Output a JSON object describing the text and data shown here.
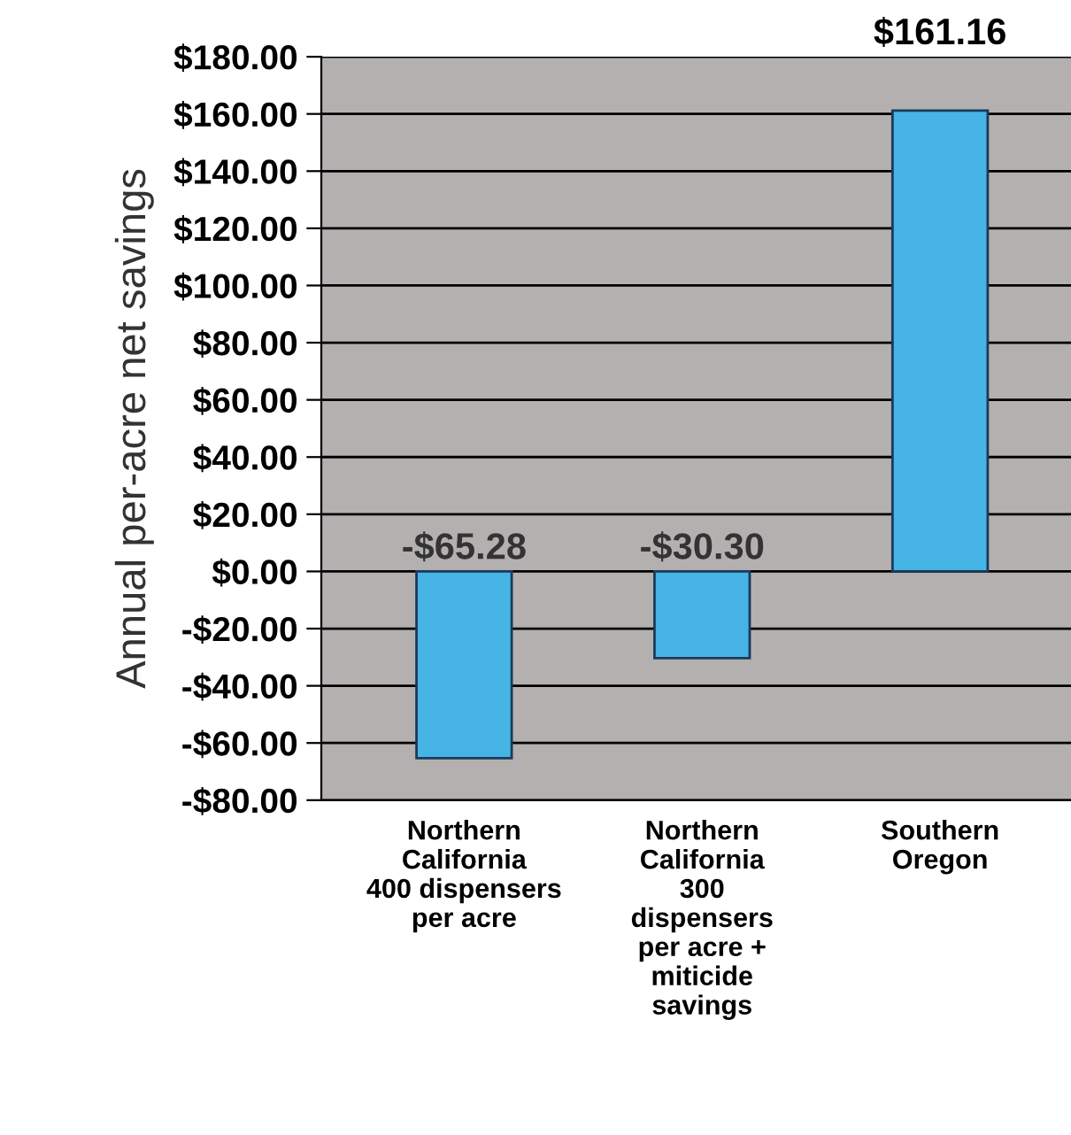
{
  "chart_data": {
    "type": "bar",
    "ylabel": "Annual per-acre net savings",
    "categories": [
      "Northern\nCalifornia\n400 dispensers\nper acre",
      "Northern\nCalifornia\n300\ndispensers\nper acre +\nmiticide\nsavings",
      "Southern\nOregon"
    ],
    "values": [
      -65.28,
      -30.3,
      161.16
    ],
    "value_labels": [
      "-$65.28",
      "-$30.30",
      "$161.16"
    ],
    "color": "#46b4e4",
    "ylim": [
      -80,
      180
    ],
    "yticks": [
      {
        "value": -80,
        "label": "-$80.00"
      },
      {
        "value": -60,
        "label": "-$60.00"
      },
      {
        "value": -40,
        "label": "-$40.00"
      },
      {
        "value": -20,
        "label": "-$20.00"
      },
      {
        "value": 0,
        "label": "$0.00"
      },
      {
        "value": 20,
        "label": "$20.00"
      },
      {
        "value": 40,
        "label": "$40.00"
      },
      {
        "value": 60,
        "label": "$60.00"
      },
      {
        "value": 80,
        "label": "$80.00"
      },
      {
        "value": 100,
        "label": "$100.00"
      },
      {
        "value": 120,
        "label": "$120.00"
      },
      {
        "value": 140,
        "label": "$140.00"
      },
      {
        "value": 160,
        "label": "$160.00"
      },
      {
        "value": 180,
        "label": "$180.00"
      }
    ],
    "grid": "y"
  }
}
